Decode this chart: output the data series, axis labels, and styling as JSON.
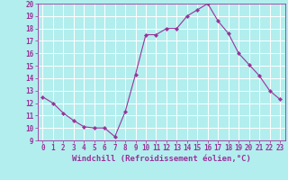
{
  "x": [
    0,
    1,
    2,
    3,
    4,
    5,
    6,
    7,
    8,
    9,
    10,
    11,
    12,
    13,
    14,
    15,
    16,
    17,
    18,
    19,
    20,
    21,
    22,
    23
  ],
  "y": [
    12.5,
    12.0,
    11.2,
    10.6,
    10.1,
    10.0,
    10.0,
    9.3,
    11.3,
    14.3,
    17.5,
    17.5,
    18.0,
    18.0,
    19.0,
    19.5,
    20.0,
    18.6,
    17.6,
    16.0,
    15.1,
    14.2,
    13.0,
    12.3
  ],
  "line_color": "#993399",
  "marker": "D",
  "marker_size": 2.2,
  "bg_color": "#b2eeee",
  "grid_color": "#ffffff",
  "xlabel": "Windchill (Refroidissement éolien,°C)",
  "xlabel_color": "#993399",
  "tick_color": "#993399",
  "ylim": [
    9,
    20
  ],
  "xlim": [
    -0.5,
    23.5
  ],
  "yticks": [
    9,
    10,
    11,
    12,
    13,
    14,
    15,
    16,
    17,
    18,
    19,
    20
  ],
  "xticks": [
    0,
    1,
    2,
    3,
    4,
    5,
    6,
    7,
    8,
    9,
    10,
    11,
    12,
    13,
    14,
    15,
    16,
    17,
    18,
    19,
    20,
    21,
    22,
    23
  ],
  "tick_fontsize": 5.5,
  "xlabel_fontsize": 6.5
}
